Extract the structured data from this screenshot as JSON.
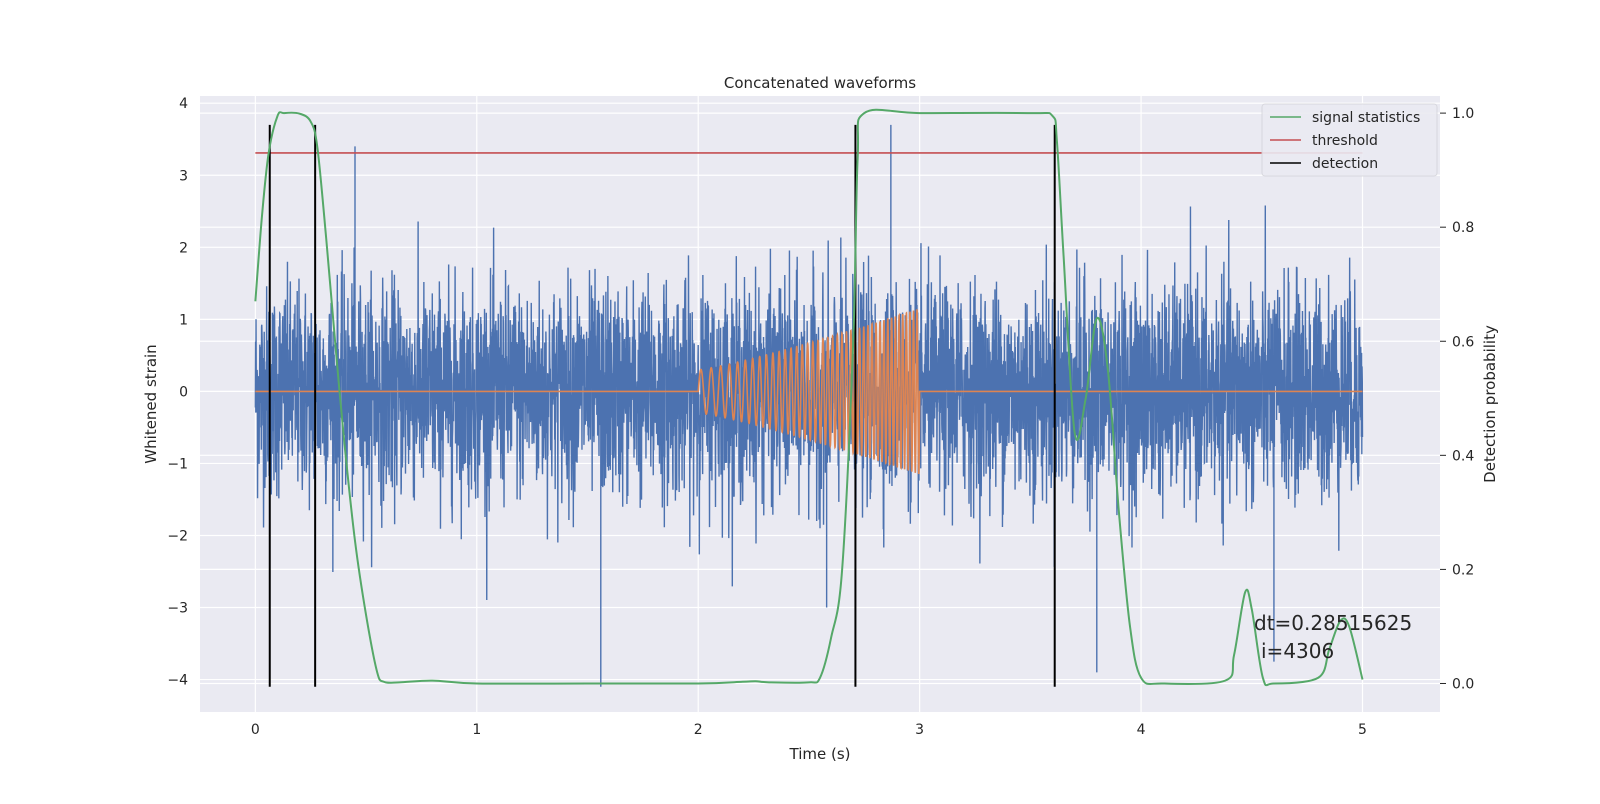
{
  "chart_data": {
    "type": "line",
    "title": "Concatenated waveforms",
    "xlabel": "Time (s)",
    "ylabel": "Whitened strain",
    "y2label": "Detection probability",
    "xlim": [
      -0.25,
      5.35
    ],
    "ylim": [
      -4.45,
      4.1
    ],
    "y2lim": [
      -0.05,
      1.03
    ],
    "xticks": [
      0,
      1,
      2,
      3,
      4,
      5
    ],
    "xtick_labels": [
      "0",
      "1",
      "2",
      "3",
      "4",
      "5"
    ],
    "yticks": [
      -4,
      -3,
      -2,
      -1,
      0,
      1,
      2,
      3,
      4
    ],
    "ytick_labels": [
      "−4",
      "−3",
      "−2",
      "−1",
      "0",
      "1",
      "2",
      "3",
      "4"
    ],
    "y2ticks": [
      0.0,
      0.2,
      0.4,
      0.6,
      0.8,
      1.0
    ],
    "y2tick_labels": [
      "0.0",
      "0.2",
      "0.4",
      "0.6",
      "0.8",
      "1.0"
    ],
    "grid": true,
    "legend_position": "top-right",
    "legend": [
      "signal statistics",
      "threshold",
      "detection"
    ],
    "colors": {
      "strain": "#4c72b0",
      "injected": "#dd8452",
      "signal_statistics": "#55a868",
      "threshold": "#c44e52",
      "detection": "#000000",
      "background": "#eaeaf2",
      "grid": "#ffffff"
    },
    "strain_noise": {
      "x_start": 0,
      "x_end": 5,
      "typical_amplitude": 1.5,
      "peak_values": [
        3.4,
        3.7,
        -4.1,
        -3.9
      ]
    },
    "injected_chirp": {
      "x_start": 2,
      "x_end": 3,
      "amplitude_start": 0.3,
      "amplitude_end": 1.15
    },
    "threshold": {
      "x": [
        0,
        5
      ],
      "y": 3.31
    },
    "detections": [
      0.065,
      0.27,
      2.71,
      3.61
    ],
    "signal_statistics": {
      "x": [
        0,
        0.03,
        0.06,
        0.1,
        0.13,
        0.2,
        0.25,
        0.28,
        0.32,
        0.36,
        0.4,
        0.45,
        0.5,
        0.55,
        0.58,
        0.65,
        0.8,
        1.0,
        1.5,
        2.0,
        2.2,
        2.26,
        2.32,
        2.5,
        2.55,
        2.6,
        2.65,
        2.7,
        2.72,
        2.75,
        3.0,
        3.5,
        3.6,
        3.62,
        3.65,
        3.7,
        3.75,
        3.8,
        3.85,
        3.9,
        3.95,
        4.0,
        4.1,
        4.38,
        4.42,
        4.47,
        4.5,
        4.55,
        4.6,
        4.8,
        4.85,
        4.9,
        4.94,
        5.0
      ],
      "y": [
        0.67,
        0.82,
        0.93,
        0.995,
        1.0,
        0.999,
        0.985,
        0.94,
        0.78,
        0.6,
        0.43,
        0.25,
        0.12,
        0.02,
        0.003,
        0.002,
        0.005,
        0.0,
        0.0,
        0.0,
        0.003,
        0.004,
        0.002,
        0.002,
        0.01,
        0.08,
        0.2,
        0.6,
        0.92,
        1.0,
        1.0,
        1.0,
        0.995,
        0.95,
        0.75,
        0.44,
        0.5,
        0.64,
        0.55,
        0.3,
        0.1,
        0.01,
        0.0,
        0.005,
        0.05,
        0.16,
        0.13,
        0.01,
        0.0,
        0.01,
        0.06,
        0.11,
        0.1,
        0.007
      ]
    },
    "annotations": [
      "dt=0.28515625",
      "i=4306"
    ]
  }
}
